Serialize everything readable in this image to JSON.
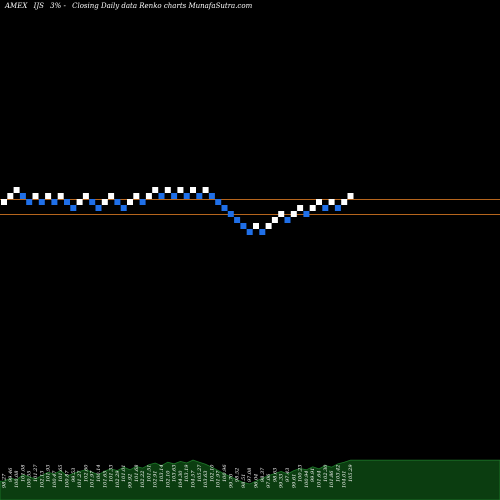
{
  "header": {
    "exchange": "AMEX",
    "symbol": "IJS",
    "change": "3% -",
    "description": "Closing Daily data Renko charts MunafaSutra.com"
  },
  "colors": {
    "background": "#000000",
    "up_brick": "#ffffff",
    "down_brick": "#1f6fe8",
    "reference_line": "#b5651d",
    "volume_fill": "#0b3d10",
    "volume_stroke": "#1e7a2a"
  },
  "chart_data": {
    "type": "renko",
    "bricks": [
      {
        "level": 0,
        "dir": "up"
      },
      {
        "level": 1,
        "dir": "up"
      },
      {
        "level": 2,
        "dir": "up"
      },
      {
        "level": 1,
        "dir": "down"
      },
      {
        "level": 0,
        "dir": "down"
      },
      {
        "level": 1,
        "dir": "up"
      },
      {
        "level": 0,
        "dir": "down"
      },
      {
        "level": 1,
        "dir": "up"
      },
      {
        "level": 0,
        "dir": "down"
      },
      {
        "level": 1,
        "dir": "up"
      },
      {
        "level": 0,
        "dir": "down"
      },
      {
        "level": -1,
        "dir": "down"
      },
      {
        "level": 0,
        "dir": "up"
      },
      {
        "level": 1,
        "dir": "up"
      },
      {
        "level": 0,
        "dir": "down"
      },
      {
        "level": -1,
        "dir": "down"
      },
      {
        "level": 0,
        "dir": "up"
      },
      {
        "level": 1,
        "dir": "up"
      },
      {
        "level": 0,
        "dir": "down"
      },
      {
        "level": -1,
        "dir": "down"
      },
      {
        "level": 0,
        "dir": "up"
      },
      {
        "level": 1,
        "dir": "up"
      },
      {
        "level": 0,
        "dir": "down"
      },
      {
        "level": 1,
        "dir": "up"
      },
      {
        "level": 2,
        "dir": "up"
      },
      {
        "level": 1,
        "dir": "down"
      },
      {
        "level": 2,
        "dir": "up"
      },
      {
        "level": 1,
        "dir": "down"
      },
      {
        "level": 2,
        "dir": "up"
      },
      {
        "level": 1,
        "dir": "down"
      },
      {
        "level": 2,
        "dir": "up"
      },
      {
        "level": 1,
        "dir": "down"
      },
      {
        "level": 2,
        "dir": "up"
      },
      {
        "level": 1,
        "dir": "down"
      },
      {
        "level": 0,
        "dir": "down"
      },
      {
        "level": -1,
        "dir": "down"
      },
      {
        "level": -2,
        "dir": "down"
      },
      {
        "level": -3,
        "dir": "down"
      },
      {
        "level": -4,
        "dir": "down"
      },
      {
        "level": -5,
        "dir": "down"
      },
      {
        "level": -4,
        "dir": "up"
      },
      {
        "level": -5,
        "dir": "down"
      },
      {
        "level": -4,
        "dir": "up"
      },
      {
        "level": -3,
        "dir": "up"
      },
      {
        "level": -2,
        "dir": "up"
      },
      {
        "level": -3,
        "dir": "down"
      },
      {
        "level": -2,
        "dir": "up"
      },
      {
        "level": -1,
        "dir": "up"
      },
      {
        "level": -2,
        "dir": "down"
      },
      {
        "level": -1,
        "dir": "up"
      },
      {
        "level": 0,
        "dir": "up"
      },
      {
        "level": -1,
        "dir": "down"
      },
      {
        "level": 0,
        "dir": "up"
      },
      {
        "level": -1,
        "dir": "down"
      },
      {
        "level": 0,
        "dir": "up"
      },
      {
        "level": 1,
        "dir": "up"
      }
    ],
    "reference_levels": [
      0,
      -2.5
    ],
    "x_labels": [
      "98.27",
      "99.46",
      "100.08",
      "101.08",
      "100.55",
      "101.27",
      "102.13",
      "101.93",
      "100.47",
      "101.65",
      "100.87",
      "99.53",
      "101.27",
      "102.60",
      "101.97",
      "100.14",
      "101.65",
      "101.33",
      "102.29",
      "101.01",
      "99.92",
      "101.68",
      "102.22",
      "101.51",
      "102.91",
      "103.14",
      "102.10",
      "103.63",
      "104.30",
      "103.19",
      "104.57",
      "105.27",
      "103.63",
      "102.10",
      "101.97",
      "100.96",
      "99.70",
      "98.52",
      "98.51",
      "97.08",
      "96.04",
      "98.37",
      "97.06",
      "98.63",
      "99.33",
      "97.43",
      "99.61",
      "100.23",
      "100.94",
      "99.91",
      "101.64",
      "102.30",
      "101.86",
      "103.42",
      "104.01",
      "105.29"
    ],
    "volume": [
      0.45,
      0.52,
      0.48,
      0.6,
      0.55,
      0.5,
      0.58,
      0.66,
      0.62,
      0.7,
      0.57,
      0.63,
      0.68,
      0.72,
      0.66,
      0.6,
      0.69,
      0.74,
      0.7,
      0.78,
      0.72,
      0.8,
      0.76,
      0.84,
      0.88,
      0.82,
      0.9,
      0.86,
      0.92,
      0.88,
      0.95,
      0.9,
      0.85,
      0.78,
      0.7,
      0.62,
      0.55,
      0.48,
      0.42,
      0.38,
      0.45,
      0.52,
      0.58,
      0.63,
      0.68,
      0.62,
      0.7,
      0.75,
      0.72,
      0.79,
      0.74,
      0.82,
      0.78,
      0.86,
      0.9,
      0.95
    ]
  }
}
